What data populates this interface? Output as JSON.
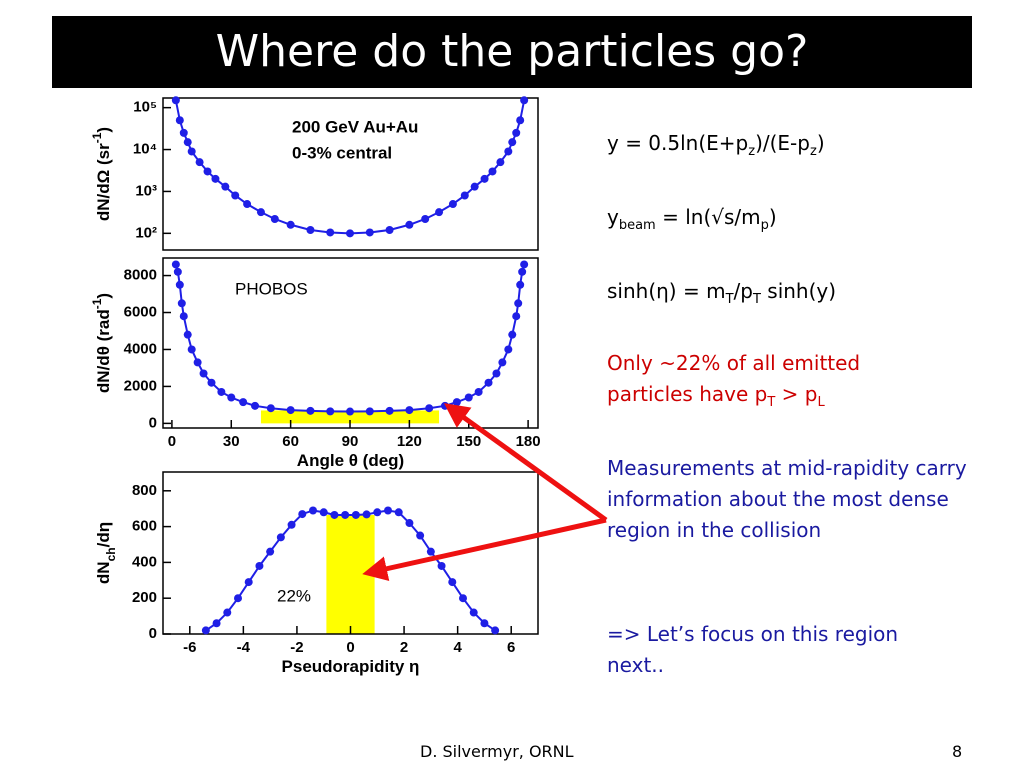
{
  "title": "Where do the particles go?",
  "chart_data": [
    {
      "type": "scatter",
      "ylog": true,
      "color": "#1f1fe6",
      "ylabel": [
        {
          "text": "dN/dΩ (sr"
        },
        {
          "text": "-1",
          "shift": "super"
        },
        {
          "text": ")"
        }
      ],
      "annotations": [
        "200 GeV Au+Au",
        "0-3% central"
      ],
      "xlim": [
        -4.5,
        185
      ],
      "ylim": [
        40,
        170000
      ],
      "yticks": [
        {
          "value": 100,
          "label": "10²"
        },
        {
          "value": 1000,
          "label": "10³"
        },
        {
          "value": 10000,
          "label": "10⁴"
        },
        {
          "value": 100000,
          "label": "10⁵"
        }
      ],
      "x": [
        2,
        4,
        6,
        8,
        10,
        14,
        18,
        22,
        27,
        32,
        38,
        45,
        52,
        60,
        70,
        80,
        90,
        100,
        110,
        120,
        128,
        135,
        142,
        148,
        153,
        158,
        162,
        166,
        170,
        172,
        174,
        176,
        178
      ],
      "values": [
        150000,
        50000,
        25000,
        15000,
        9000,
        5000,
        3000,
        2000,
        1300,
        800,
        500,
        320,
        220,
        160,
        120,
        105,
        100,
        105,
        120,
        160,
        220,
        320,
        500,
        800,
        1300,
        2000,
        3000,
        5000,
        9000,
        15000,
        25000,
        50000,
        150000
      ]
    },
    {
      "type": "scatter",
      "color": "#1f1fe6",
      "xlabel": [
        {
          "text": "Angle θ (deg)"
        }
      ],
      "ylabel": [
        {
          "text": "dN/dθ (rad"
        },
        {
          "text": "-1",
          "shift": "super"
        },
        {
          "text": ")"
        }
      ],
      "annotations": [
        "PHOBOS"
      ],
      "highlight": {
        "x": [
          45,
          135
        ],
        "top": 700,
        "color": "#ffff00"
      },
      "xlim": [
        -4.5,
        185
      ],
      "ylim": [
        -250,
        8950
      ],
      "xticks": [
        0,
        30,
        60,
        90,
        120,
        150,
        180
      ],
      "yticks": [
        0,
        2000,
        4000,
        6000,
        8000
      ],
      "x": [
        2,
        3,
        4,
        5,
        6,
        8,
        10,
        13,
        16,
        20,
        25,
        30,
        36,
        42,
        50,
        60,
        70,
        80,
        90,
        100,
        110,
        120,
        130,
        138,
        144,
        150,
        155,
        160,
        164,
        167,
        170,
        172,
        174,
        175,
        176,
        177,
        178
      ],
      "values": [
        8600,
        8200,
        7500,
        6500,
        5800,
        4800,
        4000,
        3300,
        2700,
        2200,
        1700,
        1400,
        1150,
        950,
        820,
        720,
        680,
        650,
        640,
        650,
        680,
        720,
        820,
        950,
        1150,
        1400,
        1700,
        2200,
        2700,
        3300,
        4000,
        4800,
        5800,
        6500,
        7500,
        8200,
        8600
      ]
    },
    {
      "type": "scatter",
      "color": "#1f1fe6",
      "xlabel": [
        {
          "text": "Pseudorapidity η"
        }
      ],
      "ylabel": [
        {
          "text": "dN"
        },
        {
          "text": "ch",
          "shift": "sub"
        },
        {
          "text": "/dη"
        }
      ],
      "annotations": [
        "22%"
      ],
      "highlight": {
        "x": [
          -0.9,
          0.9
        ],
        "top": 665,
        "color": "#ffff00"
      },
      "xlim": [
        -7,
        7
      ],
      "ylim": [
        0,
        905
      ],
      "xticks": [
        -6,
        -4,
        -2,
        0,
        2,
        4,
        6
      ],
      "yticks": [
        0,
        200,
        400,
        600,
        800
      ],
      "x": [
        -5.4,
        -5,
        -4.6,
        -4.2,
        -3.8,
        -3.4,
        -3,
        -2.6,
        -2.2,
        -1.8,
        -1.4,
        -1,
        -0.6,
        -0.2,
        0.2,
        0.6,
        1,
        1.4,
        1.8,
        2.2,
        2.6,
        3,
        3.4,
        3.8,
        4.2,
        4.6,
        5,
        5.4
      ],
      "values": [
        20,
        60,
        120,
        200,
        290,
        380,
        460,
        540,
        610,
        670,
        690,
        680,
        665,
        665,
        665,
        668,
        680,
        690,
        680,
        620,
        550,
        460,
        380,
        290,
        200,
        120,
        60,
        20
      ]
    }
  ],
  "notes": [
    {
      "color": "#000000",
      "parts": [
        "y = 0.5ln(E+p",
        "z",
        ")/(E-p",
        "z",
        ")"
      ]
    },
    {
      "color": "#000000",
      "parts": [
        "y",
        "beam",
        " = ln(√s/m",
        "p",
        ")"
      ]
    },
    {
      "color": "#000000",
      "parts": [
        "sinh(η) = m",
        "T",
        "/p",
        "T",
        " sinh(y)"
      ]
    },
    {
      "color": "#cc0000",
      "parts": [
        "Only ~22% of all emitted particles have p",
        "T",
        " > p",
        "L"
      ]
    },
    {
      "color": "#1a1aa0",
      "parts": [
        "Measurements at mid-rapidity carry information about the most dense region in the collision"
      ]
    },
    {
      "color": "#1a1aa0",
      "parts": [
        "=> Let’s focus on this region next.."
      ]
    }
  ],
  "footer": {
    "author": "D. Silvermyr, ORNL",
    "page": "8"
  }
}
